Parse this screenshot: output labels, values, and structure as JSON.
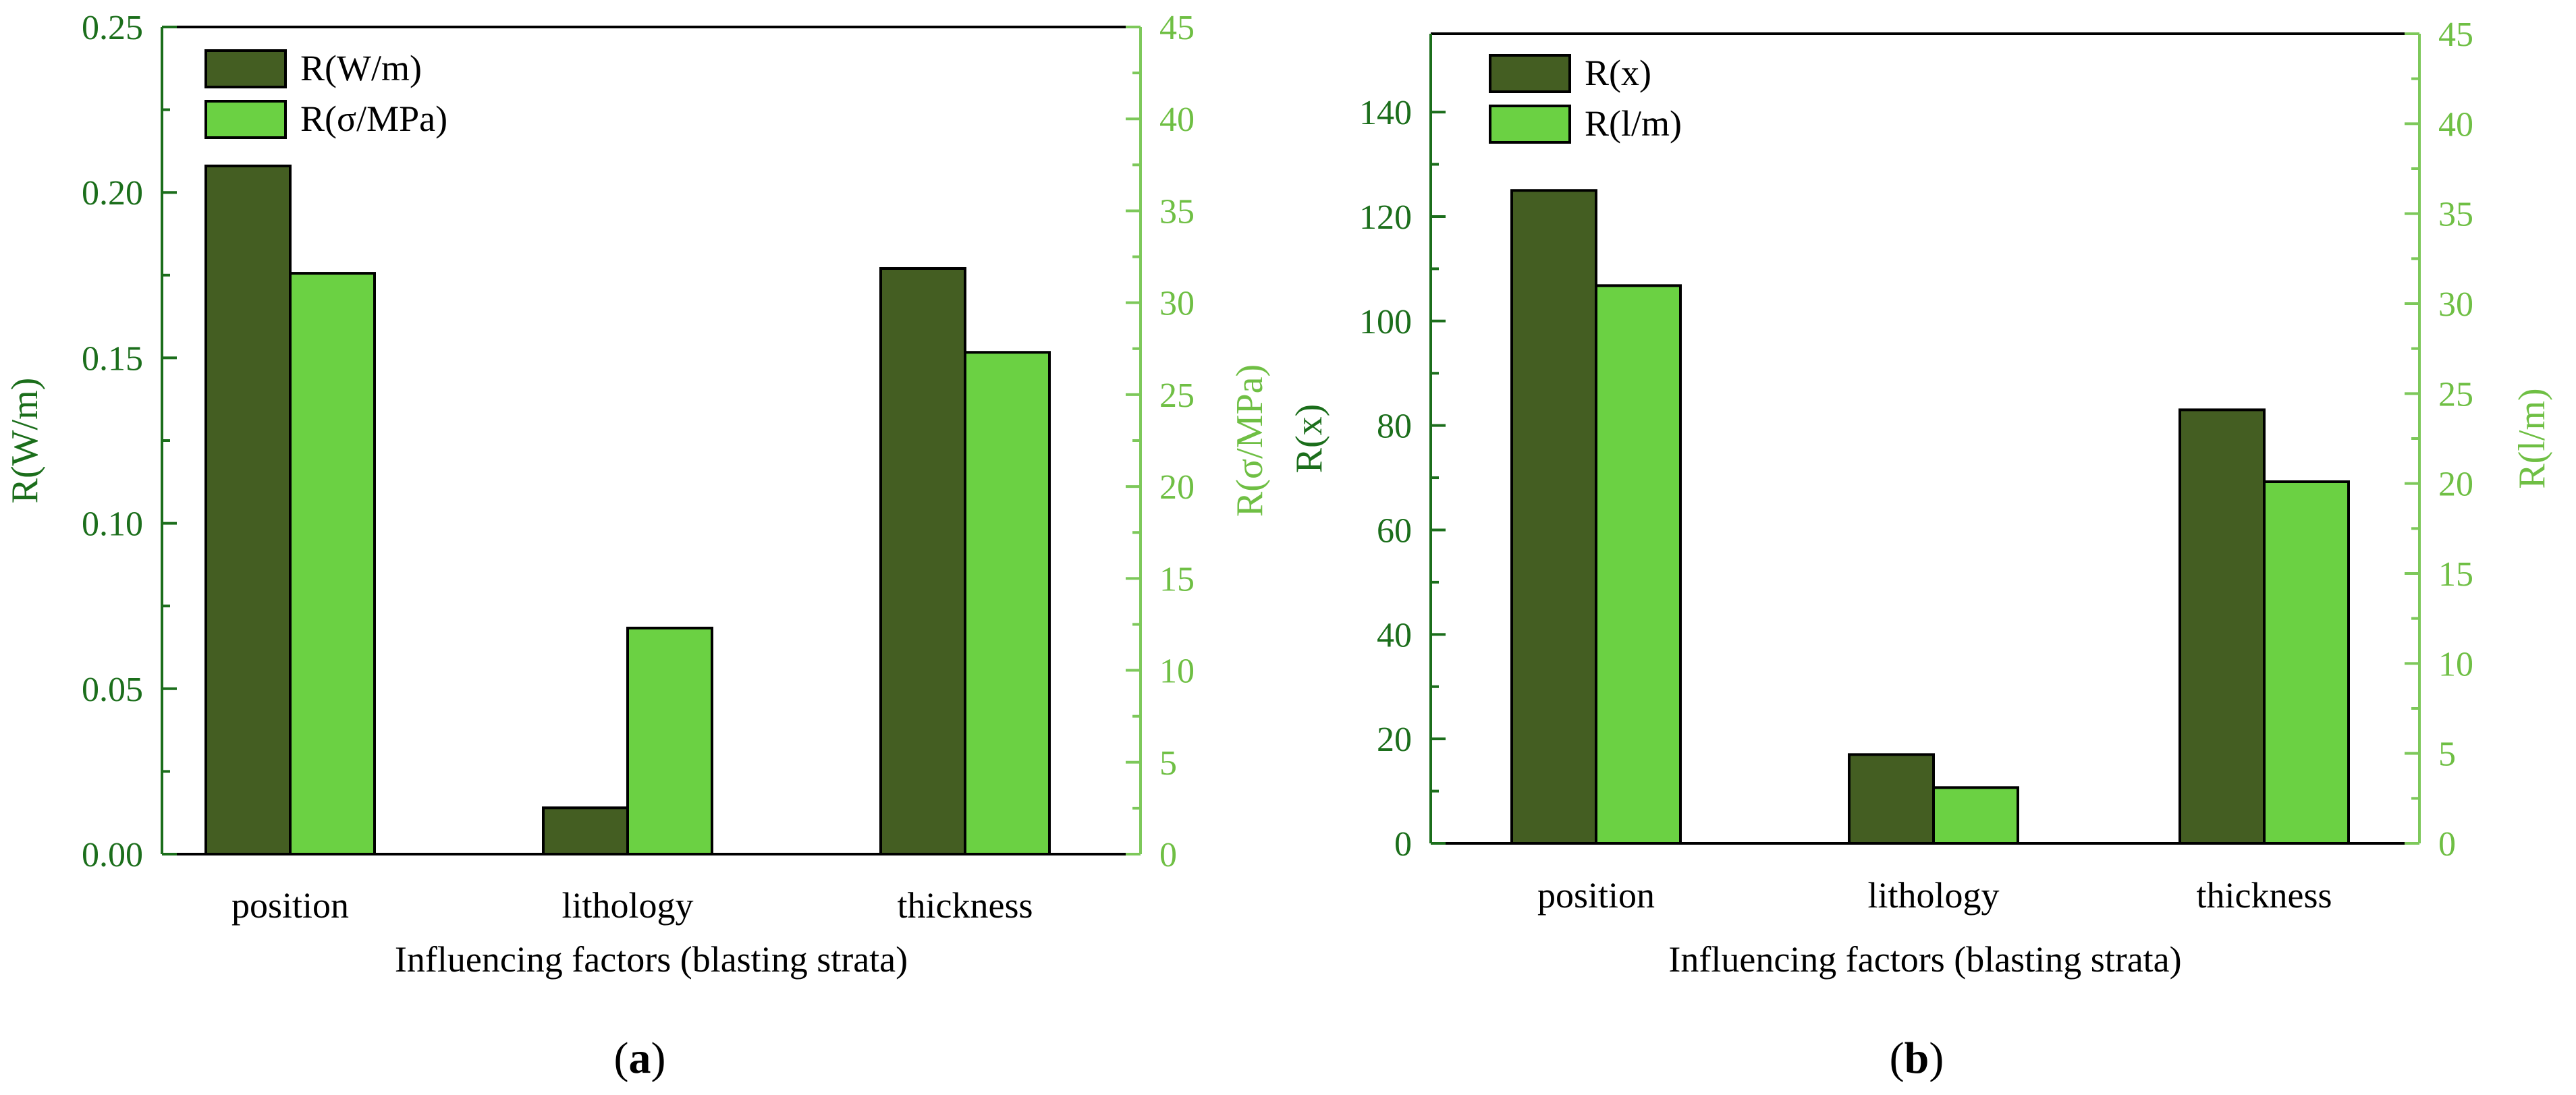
{
  "colors": {
    "dark_green": "#445E22",
    "light_green": "#6BD143",
    "left_axis": "#1B6E1B",
    "right_axis": "#7DC85A",
    "right_tick_label": "#6FBF44",
    "black": "#000000"
  },
  "chart_data": [
    {
      "id": "a",
      "type": "bar",
      "caption": "a",
      "caption_open": "(",
      "caption_close": ")",
      "xlabel": "Influencing factors (blasting strata)",
      "categories": [
        "position",
        "lithology",
        "thickness"
      ],
      "y_left": {
        "label": "R(W/m)",
        "lim": [
          0,
          0.25
        ],
        "ticks": [
          0,
          0.05,
          0.1,
          0.15,
          0.2,
          0.25
        ],
        "tick_labels": [
          "0.00",
          "0.05",
          "0.10",
          "0.15",
          "0.20",
          "0.25"
        ]
      },
      "y_right": {
        "label": "R(σ/MPa)",
        "lim": [
          0,
          45
        ],
        "ticks": [
          0,
          5,
          10,
          15,
          20,
          25,
          30,
          35,
          40,
          45
        ],
        "tick_labels": [
          "0",
          "5",
          "10",
          "15",
          "20",
          "25",
          "30",
          "35",
          "40",
          "45"
        ]
      },
      "series": [
        {
          "name": "R(W/m)",
          "axis": "left",
          "color": "#445E22",
          "values": [
            0.208,
            0.014,
            0.177
          ]
        },
        {
          "name": "R(σ/MPa)",
          "axis": "right",
          "color": "#6BD143",
          "values": [
            31.6,
            12.3,
            27.3
          ]
        }
      ],
      "legend": "top-left"
    },
    {
      "id": "b",
      "type": "bar",
      "caption": "b",
      "caption_open": "(",
      "caption_close": ")",
      "xlabel": "Influencing factors (blasting strata)",
      "categories": [
        "position",
        "lithology",
        "thickness"
      ],
      "y_left": {
        "label": "R(x)",
        "lim": [
          0,
          155
        ],
        "ticks": [
          0,
          20,
          40,
          60,
          80,
          100,
          120,
          140
        ],
        "tick_labels": [
          "0",
          "20",
          "40",
          "60",
          "80",
          "100",
          "120",
          "140"
        ]
      },
      "y_right": {
        "label": "R(l/m)",
        "lim": [
          0,
          45
        ],
        "ticks": [
          0,
          5,
          10,
          15,
          20,
          25,
          30,
          35,
          40,
          45
        ],
        "tick_labels": [
          "0",
          "5",
          "10",
          "15",
          "20",
          "25",
          "30",
          "35",
          "40",
          "45"
        ]
      },
      "series": [
        {
          "name": "R(x)",
          "axis": "left",
          "color": "#445E22",
          "values": [
            125,
            17,
            83
          ]
        },
        {
          "name": "R(l/m)",
          "axis": "right",
          "color": "#6BD143",
          "values": [
            31,
            3.1,
            20.1
          ]
        }
      ],
      "legend": "top-left"
    }
  ]
}
